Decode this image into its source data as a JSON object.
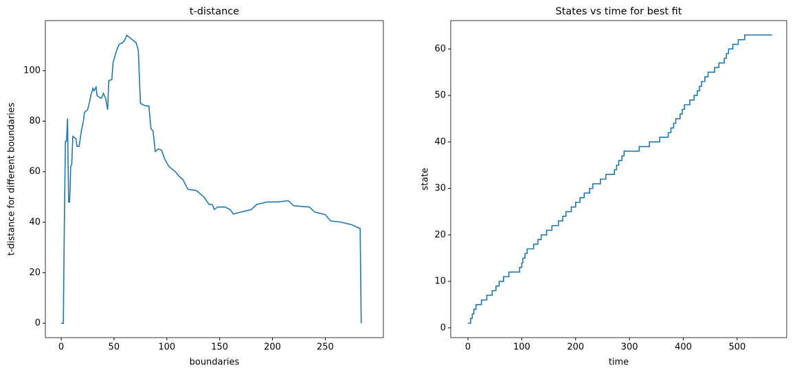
{
  "chart_data": [
    {
      "type": "line",
      "title": "t-distance",
      "xlabel": "boundaries",
      "ylabel": "t-distance for different boundaries",
      "color": "#1f77b4",
      "x": [
        0,
        2,
        3,
        4,
        5,
        6,
        7,
        8,
        9,
        10,
        11,
        14,
        15,
        17,
        19,
        21,
        22,
        25,
        27,
        28,
        30,
        31,
        33,
        34,
        38,
        40,
        42,
        44,
        45,
        48,
        49,
        52,
        55,
        58,
        60,
        62,
        65,
        68,
        71,
        73,
        75,
        80,
        83,
        85,
        87,
        89,
        92,
        95,
        98,
        102,
        108,
        112,
        115,
        120,
        128,
        135,
        140,
        143,
        145,
        148,
        155,
        160,
        163,
        170,
        180,
        185,
        195,
        205,
        215,
        220,
        235,
        240,
        250,
        255,
        265,
        275,
        280,
        283,
        284
      ],
      "values": [
        0,
        0,
        40,
        72,
        72,
        81,
        48,
        48,
        62,
        63,
        74,
        73,
        70,
        70,
        76,
        80,
        83.5,
        84.5,
        88,
        90,
        93,
        92,
        93.5,
        90,
        89,
        91,
        89,
        84.5,
        96,
        96.5,
        103,
        107.5,
        110.5,
        111,
        112,
        114,
        113,
        112,
        111,
        108,
        87,
        86,
        86,
        77,
        76,
        68,
        69,
        68.5,
        65,
        62,
        60,
        58,
        57,
        53,
        52.5,
        50,
        47,
        47,
        45,
        46,
        46,
        45,
        43.2,
        44,
        45,
        47,
        48,
        48,
        48.5,
        46.5,
        46,
        44,
        43,
        40.5,
        40,
        39,
        38,
        37.5,
        0
      ],
      "xlim": [
        -15,
        305
      ],
      "ylim": [
        -5.7,
        119.8
      ],
      "xticks": [
        0,
        50,
        100,
        150,
        200,
        250
      ],
      "yticks": [
        0,
        20,
        40,
        60,
        80,
        100
      ]
    },
    {
      "type": "line",
      "step": "post",
      "title": "States vs time for best fit",
      "xlabel": "time",
      "ylabel": "state",
      "color": "#1f77b4",
      "x": [
        0,
        5,
        8,
        11,
        15,
        25,
        35,
        45,
        52,
        58,
        66,
        76,
        96,
        100,
        102,
        106,
        110,
        122,
        130,
        136,
        146,
        156,
        168,
        176,
        182,
        192,
        200,
        208,
        216,
        226,
        232,
        246,
        256,
        272,
        276,
        280,
        286,
        290,
        318,
        337,
        356,
        372,
        377,
        382,
        386,
        394,
        398,
        402,
        412,
        420,
        426,
        430,
        434,
        440,
        446,
        458,
        466,
        476,
        480,
        484,
        492,
        502,
        514,
        565
      ],
      "values": [
        1,
        2,
        3,
        4,
        5,
        6,
        7,
        8,
        9,
        10,
        11,
        12,
        13,
        14,
        15,
        16,
        17,
        18,
        19,
        20,
        21,
        22,
        23,
        24,
        25,
        26,
        27,
        28,
        29,
        30,
        31,
        32,
        33,
        34,
        35,
        36,
        37,
        38,
        39,
        40,
        41,
        42,
        43,
        44,
        45,
        46,
        47,
        48,
        49,
        50,
        51,
        52,
        53,
        54,
        55,
        56,
        57,
        58,
        59,
        60,
        61,
        62,
        63,
        63
      ],
      "xlim": [
        -32,
        592
      ],
      "ylim": [
        -2.1,
        66.1
      ],
      "xticks": [
        0,
        100,
        200,
        300,
        400,
        500
      ],
      "yticks": [
        0,
        10,
        20,
        30,
        40,
        50,
        60
      ]
    }
  ]
}
